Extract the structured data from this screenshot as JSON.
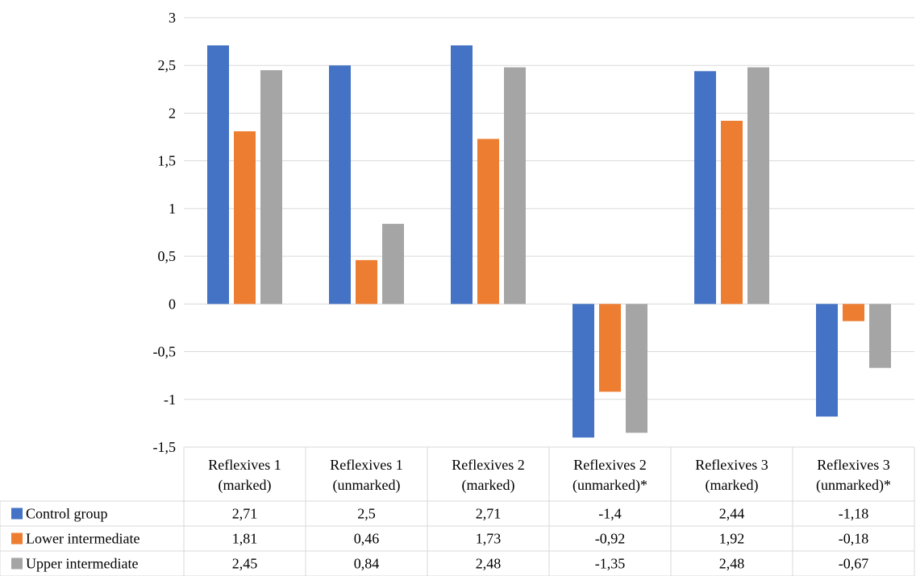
{
  "chart_data": {
    "type": "bar",
    "categories": [
      [
        "Reflexives 1",
        "(marked)"
      ],
      [
        "Reflexives 1",
        "(unmarked)"
      ],
      [
        "Reflexives 2",
        "(marked)"
      ],
      [
        "Reflexives 2",
        "(unmarked)*"
      ],
      [
        "Reflexives 3",
        "(marked)"
      ],
      [
        "Reflexives 3",
        "(unmarked)*"
      ]
    ],
    "series": [
      {
        "name": "Control group",
        "color": "#4472C4",
        "values": [
          2.71,
          2.5,
          2.71,
          -1.4,
          2.44,
          -1.18
        ],
        "labels": [
          "2,71",
          "2,5",
          "2,71",
          "-1,4",
          "2,44",
          "-1,18"
        ]
      },
      {
        "name": "Lower intermediate",
        "color": "#ED7D31",
        "values": [
          1.81,
          0.46,
          1.73,
          -0.92,
          1.92,
          -0.18
        ],
        "labels": [
          "1,81",
          "0,46",
          "1,73",
          "-0,92",
          "1,92",
          "-0,18"
        ]
      },
      {
        "name": "Upper intermediate",
        "color": "#A5A5A5",
        "values": [
          2.45,
          0.84,
          2.48,
          -1.35,
          2.48,
          -0.67
        ],
        "labels": [
          "2,45",
          "0,84",
          "2,48",
          "-1,35",
          "2,48",
          "-0,67"
        ]
      }
    ],
    "ylim": [
      -1.5,
      3
    ],
    "yticks": [
      3,
      2.5,
      2,
      1.5,
      1,
      0.5,
      0,
      -0.5,
      -1,
      -1.5
    ],
    "ytick_labels": [
      "3",
      "2,5",
      "2",
      "1,5",
      "1",
      "0,5",
      "0",
      "-0,5",
      "-1",
      "-1,5"
    ],
    "grid": true,
    "legend": "data-table",
    "gridline_color": "#D9D9D9",
    "title": "",
    "xlabel": "",
    "ylabel": ""
  }
}
